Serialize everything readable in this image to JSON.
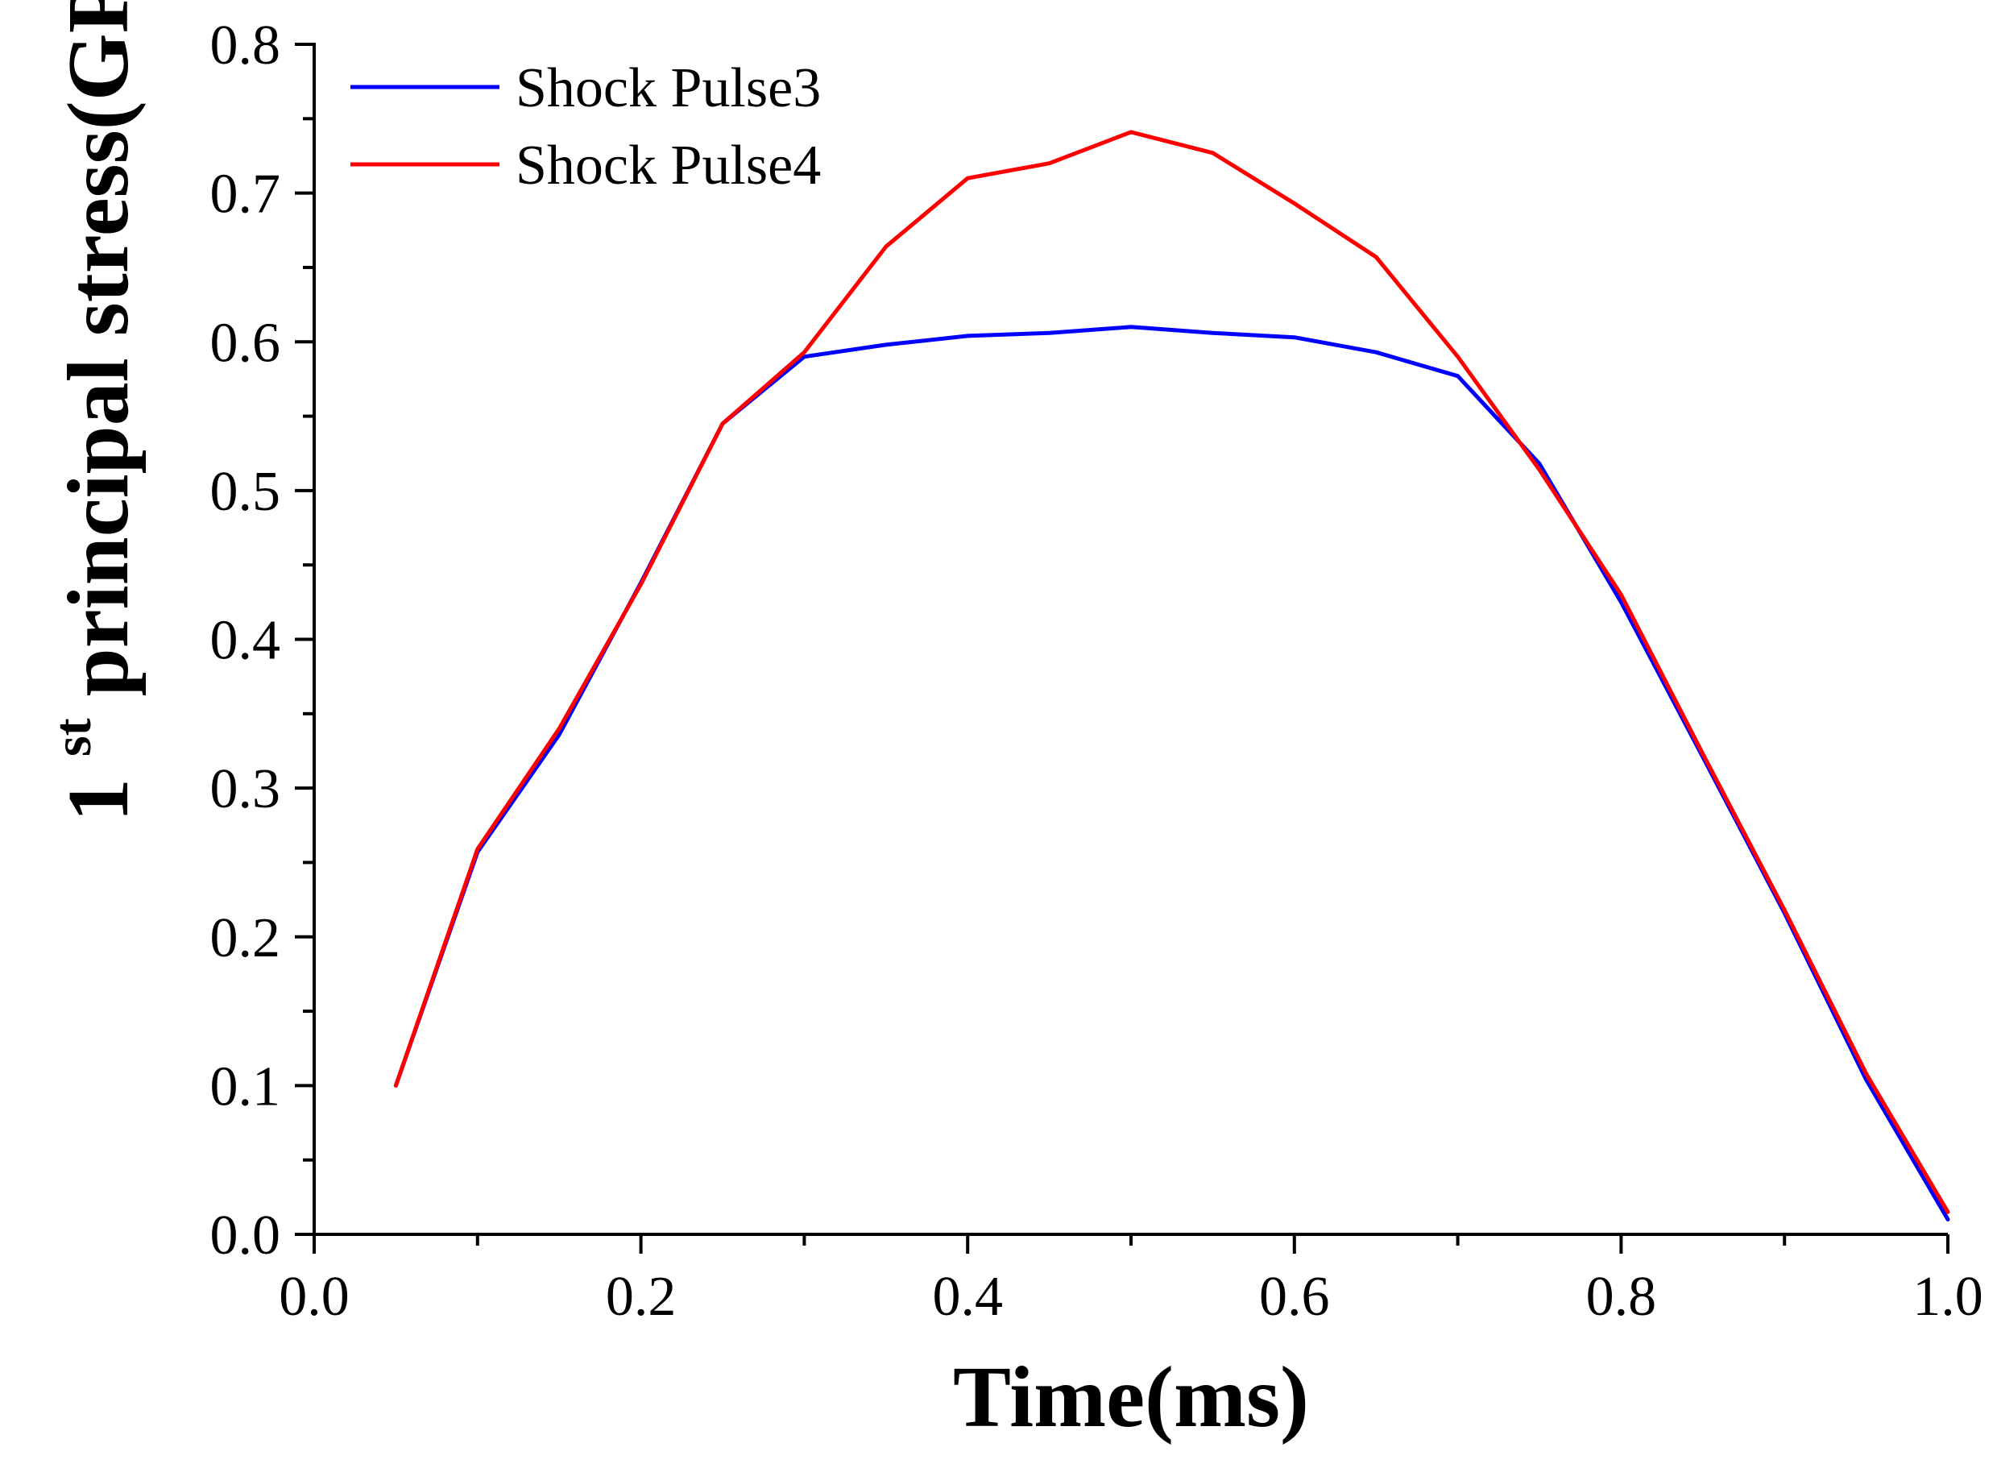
{
  "chart_data": {
    "type": "line",
    "title": "",
    "xlabel": "Time(ms)",
    "ylabel": {
      "prefix": "1",
      "superscript": "st",
      "main": "principal stress(GPa)"
    },
    "xlim": [
      0.0,
      1.0
    ],
    "ylim": [
      0.0,
      0.8
    ],
    "xticks": [
      "0.0",
      "0.2",
      "0.4",
      "0.6",
      "0.8",
      "1.0"
    ],
    "yticks": [
      "0.0",
      "0.1",
      "0.2",
      "0.3",
      "0.4",
      "0.5",
      "0.6",
      "0.7",
      "0.8"
    ],
    "grid": false,
    "legend_position": "top-left",
    "series": [
      {
        "name": "Shock Pulse3",
        "color": "#0000ff",
        "x": [
          0.05,
          0.1,
          0.15,
          0.2,
          0.25,
          0.3,
          0.35,
          0.4,
          0.45,
          0.5,
          0.55,
          0.6,
          0.65,
          0.7,
          0.75,
          0.8,
          0.85,
          0.9,
          0.95,
          1.0
        ],
        "y": [
          0.1,
          0.257,
          0.336,
          0.438,
          0.545,
          0.59,
          0.598,
          0.604,
          0.606,
          0.61,
          0.606,
          0.603,
          0.593,
          0.577,
          0.518,
          0.425,
          0.321,
          0.216,
          0.104,
          0.01
        ]
      },
      {
        "name": "Shock Pulse4",
        "color": "#ff0000",
        "x": [
          0.05,
          0.1,
          0.15,
          0.2,
          0.25,
          0.3,
          0.35,
          0.4,
          0.45,
          0.5,
          0.55,
          0.6,
          0.65,
          0.7,
          0.75,
          0.8,
          0.85,
          0.9,
          0.95,
          1.0
        ],
        "y": [
          0.1,
          0.259,
          0.34,
          0.437,
          0.545,
          0.593,
          0.664,
          0.71,
          0.72,
          0.741,
          0.727,
          0.693,
          0.657,
          0.59,
          0.514,
          0.43,
          0.323,
          0.218,
          0.108,
          0.015
        ]
      }
    ]
  }
}
